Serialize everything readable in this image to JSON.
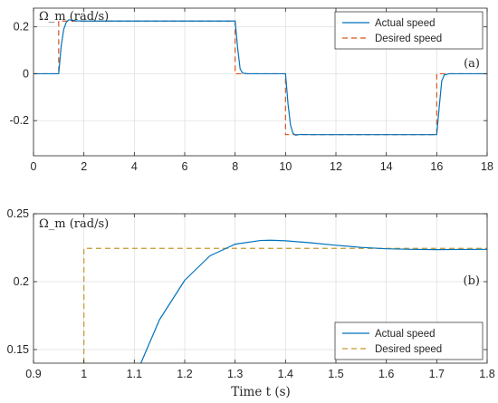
{
  "chart_data": [
    {
      "type": "line",
      "panel_label": "(a)",
      "ylabel": "Ω_m (rad/s)",
      "xlabel": "",
      "xlim": [
        0,
        18
      ],
      "ylim": [
        -0.35,
        0.28
      ],
      "xticks": [
        0,
        2,
        4,
        6,
        8,
        10,
        12,
        14,
        16,
        18
      ],
      "yticks": [
        -0.2,
        0,
        0.2
      ],
      "xtick_labels": [
        "0",
        "2",
        "4",
        "6",
        "8",
        "10",
        "12",
        "14",
        "16",
        "18"
      ],
      "ytick_labels": [
        "-0.2",
        "0",
        "0.2"
      ],
      "legend_position": "top-right",
      "colors": {
        "actual": "#0072BD",
        "desired": "#D95319"
      },
      "series": [
        {
          "name": "Actual speed",
          "style": "solid",
          "x": [
            0,
            1.0,
            1.1,
            1.2,
            1.3,
            1.4,
            1.5,
            1.7,
            2.0,
            8.0,
            8.1,
            8.2,
            8.3,
            8.5,
            10.0,
            10.1,
            10.2,
            10.3,
            10.4,
            10.6,
            11.0,
            16.0,
            16.1,
            16.2,
            16.3,
            16.5,
            18.0
          ],
          "y": [
            0,
            0,
            0.12,
            0.19,
            0.22,
            0.23,
            0.229,
            0.226,
            0.225,
            0.225,
            0.11,
            0.02,
            0.003,
            0,
            0,
            -0.13,
            -0.22,
            -0.255,
            -0.262,
            -0.259,
            -0.26,
            -0.26,
            -0.14,
            -0.03,
            -0.005,
            0,
            0
          ]
        },
        {
          "name": "Desired speed",
          "style": "dashed",
          "x": [
            0,
            1.0,
            1.0,
            8.0,
            8.0,
            10.0,
            10.0,
            16.0,
            16.0,
            18.0
          ],
          "y": [
            0,
            0,
            0.225,
            0.225,
            0,
            0,
            -0.26,
            -0.26,
            0,
            0
          ]
        }
      ]
    },
    {
      "type": "line",
      "panel_label": "(b)",
      "ylabel": "Ω_m (rad/s)",
      "xlabel": "Time t (s)",
      "xlim": [
        0.9,
        1.8
      ],
      "ylim": [
        0.14,
        0.25
      ],
      "xticks": [
        0.9,
        1.0,
        1.1,
        1.2,
        1.3,
        1.4,
        1.5,
        1.6,
        1.7,
        1.8
      ],
      "yticks": [
        0.15,
        0.2,
        0.25
      ],
      "xtick_labels": [
        "0.9",
        "1",
        "1.1",
        "1.2",
        "1.3",
        "1.4",
        "1.5",
        "1.6",
        "1.7",
        "1.8"
      ],
      "ytick_labels": [
        "0.15",
        "0.2",
        "0.25"
      ],
      "legend_position": "bottom-right",
      "colors": {
        "actual": "#0072BD",
        "desired": "#C8962C"
      },
      "series": [
        {
          "name": "Actual speed",
          "style": "solid",
          "x": [
            1.113,
            1.15,
            1.2,
            1.25,
            1.3,
            1.35,
            1.37,
            1.4,
            1.45,
            1.5,
            1.55,
            1.6,
            1.65,
            1.7,
            1.75,
            1.8
          ],
          "y": [
            0.14,
            0.172,
            0.201,
            0.219,
            0.2276,
            0.2303,
            0.2305,
            0.2301,
            0.2286,
            0.2268,
            0.2252,
            0.2242,
            0.2238,
            0.2236,
            0.2237,
            0.2238
          ]
        },
        {
          "name": "Desired speed",
          "style": "dashed",
          "x": [
            1.0,
            1.0,
            1.8
          ],
          "y": [
            0.14,
            0.2245,
            0.2245
          ]
        }
      ]
    }
  ]
}
